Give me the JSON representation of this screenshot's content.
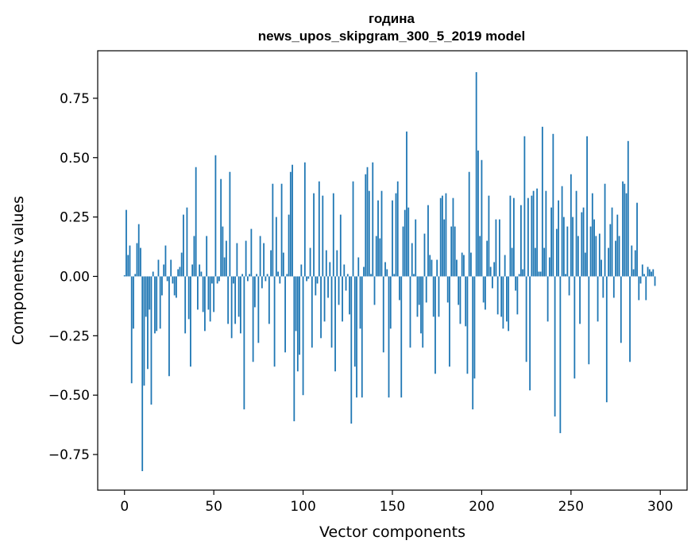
{
  "chart_data": {
    "type": "bar",
    "title_line1": "година",
    "title_line2": "news_upos_skipgram_300_5_2019 model",
    "xlabel": "Vector components",
    "ylabel": "Components values",
    "xlim": [
      -15,
      315
    ],
    "ylim": [
      -0.9,
      0.95
    ],
    "xticks": [
      0,
      50,
      100,
      150,
      200,
      250,
      300
    ],
    "xtick_labels": [
      "0",
      "50",
      "100",
      "150",
      "200",
      "250",
      "300"
    ],
    "yticks": [
      -0.75,
      -0.5,
      -0.25,
      0.0,
      0.25,
      0.5,
      0.75
    ],
    "ytick_labels": [
      "−0.75",
      "−0.50",
      "−0.25",
      "0.00",
      "0.25",
      "0.50",
      "0.75"
    ],
    "bar_color": "#1f77b4",
    "values": [
      0.005,
      0.28,
      0.09,
      0.13,
      -0.45,
      -0.22,
      0.01,
      0.14,
      0.22,
      0.12,
      -0.82,
      -0.46,
      -0.17,
      -0.39,
      -0.14,
      -0.54,
      0.02,
      -0.24,
      -0.23,
      0.07,
      -0.22,
      -0.08,
      0.05,
      0.13,
      -0.02,
      -0.42,
      0.07,
      -0.03,
      -0.08,
      -0.09,
      0.03,
      0.04,
      0.1,
      0.26,
      -0.24,
      0.29,
      -0.18,
      -0.38,
      0.05,
      0.17,
      0.46,
      -0.14,
      0.05,
      0.02,
      -0.15,
      -0.23,
      0.17,
      -0.14,
      -0.19,
      -0.03,
      -0.15,
      0.51,
      -0.03,
      -0.02,
      0.41,
      0.21,
      0.08,
      0.15,
      -0.2,
      0.44,
      -0.26,
      -0.03,
      -0.2,
      0.14,
      -0.17,
      -0.24,
      0.01,
      -0.56,
      0.15,
      -0.02,
      0.01,
      0.2,
      -0.36,
      -0.13,
      0.01,
      -0.28,
      0.17,
      -0.05,
      0.14,
      -0.02,
      0.01,
      -0.2,
      0.11,
      0.39,
      -0.38,
      0.25,
      0.02,
      -0.03,
      0.39,
      0.1,
      -0.32,
      0.01,
      0.26,
      0.44,
      0.47,
      -0.61,
      -0.23,
      -0.4,
      -0.33,
      0.05,
      -0.5,
      0.48,
      -0.02,
      -0.01,
      0.12,
      -0.3,
      0.35,
      -0.08,
      -0.03,
      0.4,
      -0.26,
      0.34,
      -0.19,
      0.11,
      -0.09,
      0.06,
      -0.3,
      0.35,
      -0.4,
      0.11,
      -0.12,
      0.26,
      -0.19,
      0.05,
      -0.06,
      0.01,
      -0.16,
      -0.62,
      0.4,
      -0.38,
      -0.51,
      0.08,
      -0.22,
      -0.51,
      0.04,
      0.43,
      0.46,
      0.36,
      0.01,
      0.48,
      -0.12,
      0.17,
      0.32,
      0.16,
      0.36,
      -0.32,
      0.06,
      0.03,
      -0.51,
      -0.22,
      0.32,
      0.01,
      0.35,
      0.4,
      -0.1,
      -0.51,
      0.21,
      0.28,
      0.61,
      0.29,
      -0.3,
      0.14,
      0.01,
      0.24,
      -0.17,
      -0.12,
      -0.24,
      -0.3,
      0.18,
      -0.11,
      0.3,
      0.09,
      0.07,
      -0.17,
      -0.41,
      0.07,
      -0.17,
      0.33,
      0.34,
      0.24,
      0.35,
      -0.11,
      -0.38,
      0.21,
      0.33,
      0.21,
      0.07,
      -0.12,
      -0.2,
      0.1,
      0.09,
      -0.21,
      -0.41,
      0.44,
      0.1,
      -0.56,
      -0.43,
      0.86,
      0.53,
      0.17,
      0.49,
      -0.11,
      -0.14,
      0.15,
      0.34,
      0.04,
      -0.05,
      0.06,
      0.24,
      -0.16,
      0.24,
      -0.17,
      -0.22,
      0.09,
      -0.19,
      -0.23,
      0.34,
      0.12,
      0.33,
      -0.06,
      -0.16,
      0.01,
      0.3,
      0.03,
      0.59,
      -0.36,
      0.33,
      -0.48,
      0.34,
      0.36,
      0.12,
      0.37,
      0.02,
      0.02,
      0.63,
      0.12,
      0.36,
      -0.19,
      0.08,
      0.29,
      0.6,
      -0.59,
      0.2,
      0.32,
      -0.66,
      0.38,
      0.25,
      0.01,
      0.21,
      -0.08,
      0.43,
      0.25,
      -0.43,
      0.36,
      0.17,
      -0.2,
      0.27,
      0.29,
      0.1,
      0.59,
      -0.37,
      0.21,
      0.35,
      0.24,
      0.17,
      -0.19,
      0.18,
      0.07,
      -0.09,
      0.39,
      -0.53,
      0.12,
      0.22,
      0.29,
      -0.09,
      0.15,
      0.26,
      0.17,
      -0.28,
      0.4,
      0.39,
      0.35,
      0.57,
      -0.36,
      0.13,
      0.03,
      0.11,
      0.31,
      -0.1,
      -0.03,
      0.05,
      0.01,
      -0.1,
      0.04,
      0.03,
      0.02,
      0.03,
      -0.04
    ]
  }
}
